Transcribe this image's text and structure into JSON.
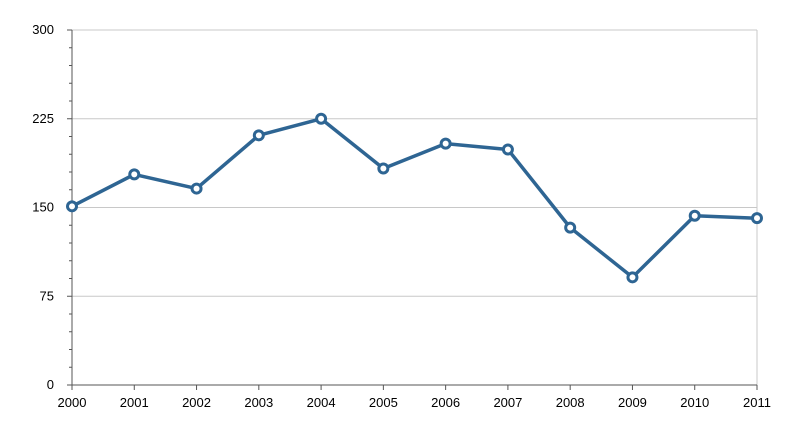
{
  "chart_data": {
    "type": "line",
    "title": "",
    "xlabel": "",
    "ylabel": "",
    "categories": [
      "2000",
      "2001",
      "2002",
      "2003",
      "2004",
      "2005",
      "2006",
      "2007",
      "2008",
      "2009",
      "2010",
      "2011"
    ],
    "series": [
      {
        "values": [
          151,
          178,
          166,
          211,
          225,
          183,
          204,
          199,
          133,
          91,
          143,
          141
        ]
      }
    ],
    "ylim": [
      0,
      300
    ],
    "yticks": [
      0,
      75,
      150,
      225,
      300
    ],
    "grid": true,
    "legend": "none",
    "colors": {
      "line": "#2e6593",
      "marker_fill": "#ffffff",
      "grid": "#c8c8c8",
      "axis": "#555555"
    }
  }
}
